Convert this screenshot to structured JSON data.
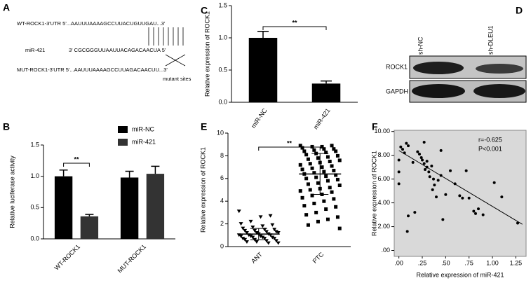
{
  "panel_a": {
    "panel_label": "A",
    "wt": "WT-ROCK1-3'UTR 5'...AAUUUAAAAGCCUUACUGUUGAU...3'",
    "mir_name": "miR-421",
    "mir_seq": "3'   CGCGGGUUAAUUACAGACAACUA   5'",
    "mut": "MUT-ROCK1-3'UTR 5'...AAUUUAAAAGCCUUAGACAACUU...3'",
    "note": "mutant sites"
  },
  "panel_d": {
    "panel_label": "D",
    "lanes": [
      "sh-NC",
      "sh-DLEU1"
    ],
    "rows": [
      "ROCK1",
      "GAPDH"
    ]
  },
  "chart_data": [
    {
      "type": "bar",
      "panel_label": "B",
      "ylabel": "Relative luciferase activity",
      "categories": [
        "WT-ROCK1",
        "MUT-ROCK1"
      ],
      "series": [
        {
          "name": "miR-NC",
          "color": "#000000",
          "values": [
            1.0,
            0.98
          ],
          "errors": [
            0.1,
            0.1
          ]
        },
        {
          "name": "miR-421",
          "color": "#333333",
          "values": [
            0.36,
            1.04
          ],
          "errors": [
            0.03,
            0.12
          ]
        }
      ],
      "ylim": [
        0,
        1.5
      ],
      "yticks": [
        {
          "value": 0,
          "label": "0.0"
        },
        {
          "value": 0.5,
          "label": "0.5"
        },
        {
          "value": 1,
          "label": "1.0"
        },
        {
          "value": 1.5,
          "label": "1.5"
        }
      ],
      "annotation": "**",
      "legend": "top-right"
    },
    {
      "type": "bar",
      "panel_label": "C",
      "ylabel": "Relative expression of ROCK1",
      "categories": [
        "miR-NC",
        "miR-421"
      ],
      "values": [
        1.0,
        0.29
      ],
      "errors": [
        0.1,
        0.04
      ],
      "color": "#000000",
      "ylim": [
        0,
        1.5
      ],
      "yticks": [
        {
          "value": 0,
          "label": "0.0"
        },
        {
          "value": 0.5,
          "label": "0.5"
        },
        {
          "value": 1,
          "label": "1.0"
        },
        {
          "value": 1.5,
          "label": "1.5"
        }
      ],
      "annotation": "**"
    },
    {
      "type": "strip",
      "panel_label": "E",
      "ylabel": "Relative expression of ROCK1",
      "categories": [
        "ANT",
        "PTC"
      ],
      "values": [
        [
          3.1,
          2.7,
          2.6,
          2.2,
          2.0,
          1.9,
          1.8,
          1.7,
          1.6,
          1.5,
          1.5,
          1.4,
          1.4,
          1.3,
          1.3,
          1.2,
          1.2,
          1.2,
          1.1,
          1.1,
          1.0,
          1.0,
          1.0,
          0.9,
          0.9,
          0.9,
          0.8,
          0.8,
          0.8,
          0.7,
          0.7,
          0.7,
          0.6,
          0.6,
          0.5,
          0.5,
          0.4,
          0.4,
          0.3,
          0.3
        ],
        [
          8.9,
          8.9,
          8.8,
          8.8,
          8.7,
          8.6,
          8.6,
          8.5,
          8.4,
          8.4,
          8.3,
          8.2,
          8.1,
          8.0,
          7.9,
          7.8,
          7.7,
          7.6,
          7.5,
          7.4,
          7.3,
          7.2,
          7.1,
          7.0,
          6.9,
          6.8,
          6.7,
          6.6,
          6.5,
          6.4,
          6.3,
          6.2,
          6.1,
          6.0,
          5.9,
          5.8,
          5.6,
          5.5,
          5.4,
          5.2,
          5.1,
          5.0,
          4.9,
          4.8,
          4.6,
          4.5,
          4.3,
          4.2,
          4.0,
          3.8,
          3.6,
          3.5,
          3.3,
          3.0,
          2.8,
          2.6,
          2.4,
          2.2,
          1.9,
          1.6
        ]
      ],
      "markers": [
        "triangle-down",
        "square"
      ],
      "means": [
        1.1,
        6.4
      ],
      "errors": [
        0.5,
        1.8
      ],
      "ylim": [
        0,
        10
      ],
      "yticks": [
        0,
        2,
        4,
        6,
        8,
        10
      ],
      "annotation": "**"
    },
    {
      "type": "scatter",
      "panel_label": "F",
      "xlabel": "Relative expression of miR-421",
      "ylabel": "Relative expression of ROCK1",
      "x": [
        0.0,
        0.0,
        0.0,
        0.02,
        0.04,
        0.06,
        0.08,
        0.1,
        0.1,
        0.09,
        0.15,
        0.17,
        0.2,
        0.22,
        0.24,
        0.25,
        0.27,
        0.27,
        0.28,
        0.3,
        0.3,
        0.32,
        0.33,
        0.35,
        0.36,
        0.37,
        0.38,
        0.4,
        0.42,
        0.45,
        0.45,
        0.47,
        0.5,
        0.55,
        0.6,
        0.65,
        0.68,
        0.72,
        0.75,
        0.8,
        0.82,
        0.85,
        0.9,
        1.02,
        1.1,
        1.27
      ],
      "values": [
        7.6,
        6.6,
        5.6,
        8.7,
        8.5,
        8.2,
        9.0,
        8.8,
        2.9,
        1.6,
        7.4,
        3.2,
        8.3,
        8.1,
        7.8,
        7.6,
        9.1,
        7.3,
        6.8,
        7.5,
        7.0,
        6.6,
        6.2,
        7.1,
        5.1,
        6.0,
        5.5,
        4.5,
        5.9,
        8.4,
        6.3,
        2.6,
        4.7,
        6.7,
        5.6,
        4.6,
        4.4,
        6.7,
        4.4,
        3.3,
        3.1,
        3.5,
        3.0,
        5.7,
        4.5,
        2.3
      ],
      "color": "#000000",
      "background": "#d9d9d9",
      "xlim": [
        -0.05,
        1.36
      ],
      "ylim": [
        -0.5,
        10.1
      ],
      "xticks": [
        {
          "value": 0,
          "label": ".00"
        },
        {
          "value": 0.25,
          "label": ".25"
        },
        {
          "value": 0.5,
          "label": ".50"
        },
        {
          "value": 0.75,
          "label": ".75"
        },
        {
          "value": 1,
          "label": "1.00"
        },
        {
          "value": 1.25,
          "label": "1.25"
        }
      ],
      "yticks": [
        {
          "value": 0,
          "label": ".00"
        },
        {
          "value": 2,
          "label": "2.00"
        },
        {
          "value": 4,
          "label": "4.00"
        },
        {
          "value": 6,
          "label": "6.00"
        },
        {
          "value": 8,
          "label": "8.00"
        },
        {
          "value": 10,
          "label": "10.00"
        }
      ],
      "annotations": [
        "r=-0.625",
        "P<0.001"
      ],
      "trendline": {
        "x": [
          0.0,
          1.32
        ],
        "y": [
          8.4,
          2.2
        ]
      }
    }
  ]
}
